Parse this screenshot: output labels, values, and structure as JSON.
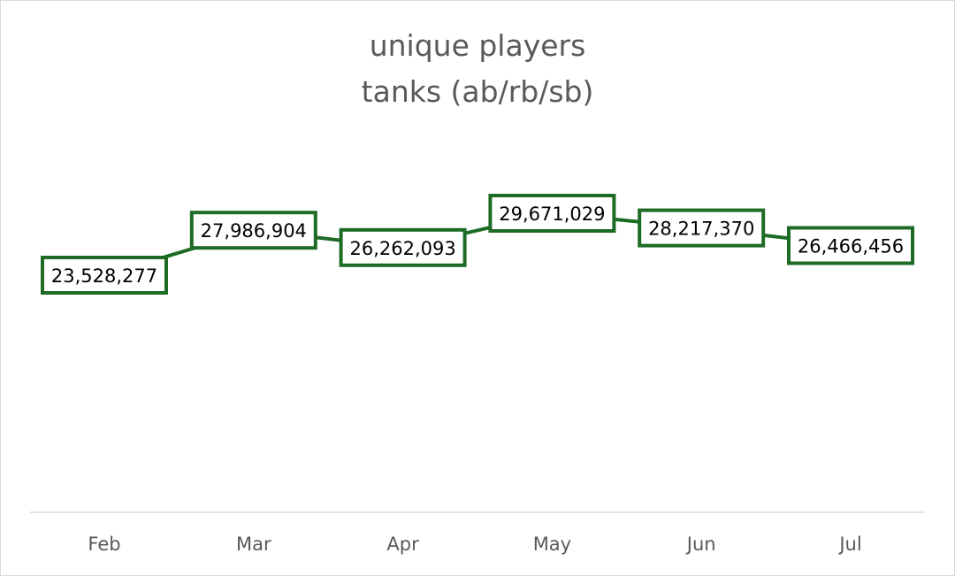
{
  "chart_data": {
    "type": "line",
    "title_lines": [
      "unique players",
      "tanks (ab/rb/sb)"
    ],
    "categories": [
      "Feb",
      "Mar",
      "Apr",
      "May",
      "Jun",
      "Jul"
    ],
    "series": [
      {
        "values": [
          23528277,
          27986904,
          26262093,
          29671029,
          28217370,
          26466456
        ],
        "labels": [
          "23,528,277",
          "27,986,904",
          "26,262,093",
          "29,671,029",
          "28,217,370",
          "26,466,456"
        ]
      }
    ],
    "ylim": [
      0,
      45000000
    ],
    "grid": false,
    "legend": "none",
    "line_color": "#1e6b25",
    "axis_color": "#d9d9d9",
    "text_color": "#595959"
  }
}
